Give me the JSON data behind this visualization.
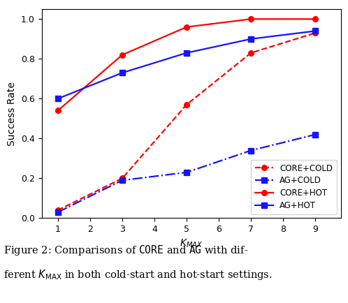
{
  "x": [
    1,
    3,
    5,
    7,
    9
  ],
  "core_cold": [
    0.04,
    0.2,
    0.57,
    0.83,
    0.93
  ],
  "ag_cold": [
    0.03,
    0.19,
    0.23,
    0.34,
    0.42
  ],
  "core_hot": [
    0.54,
    0.82,
    0.96,
    1.0,
    1.0
  ],
  "ag_hot": [
    0.6,
    0.73,
    0.83,
    0.9,
    0.94
  ],
  "xlabel": "$K_{MAX}$",
  "ylabel": "Success Rate",
  "xlim": [
    0.5,
    9.8
  ],
  "ylim": [
    0.0,
    1.05
  ],
  "xticks": [
    1,
    2,
    3,
    4,
    5,
    6,
    7,
    8,
    9
  ],
  "yticks": [
    0.0,
    0.2,
    0.4,
    0.6,
    0.8,
    1.0
  ],
  "legend_labels": [
    "CORE+COLD",
    "AG+COLD",
    "CORE+HOT",
    "AG+HOT"
  ],
  "color_red": "#FF0000",
  "color_blue": "#1414FF",
  "linewidth": 1.6,
  "markersize": 5.5
}
